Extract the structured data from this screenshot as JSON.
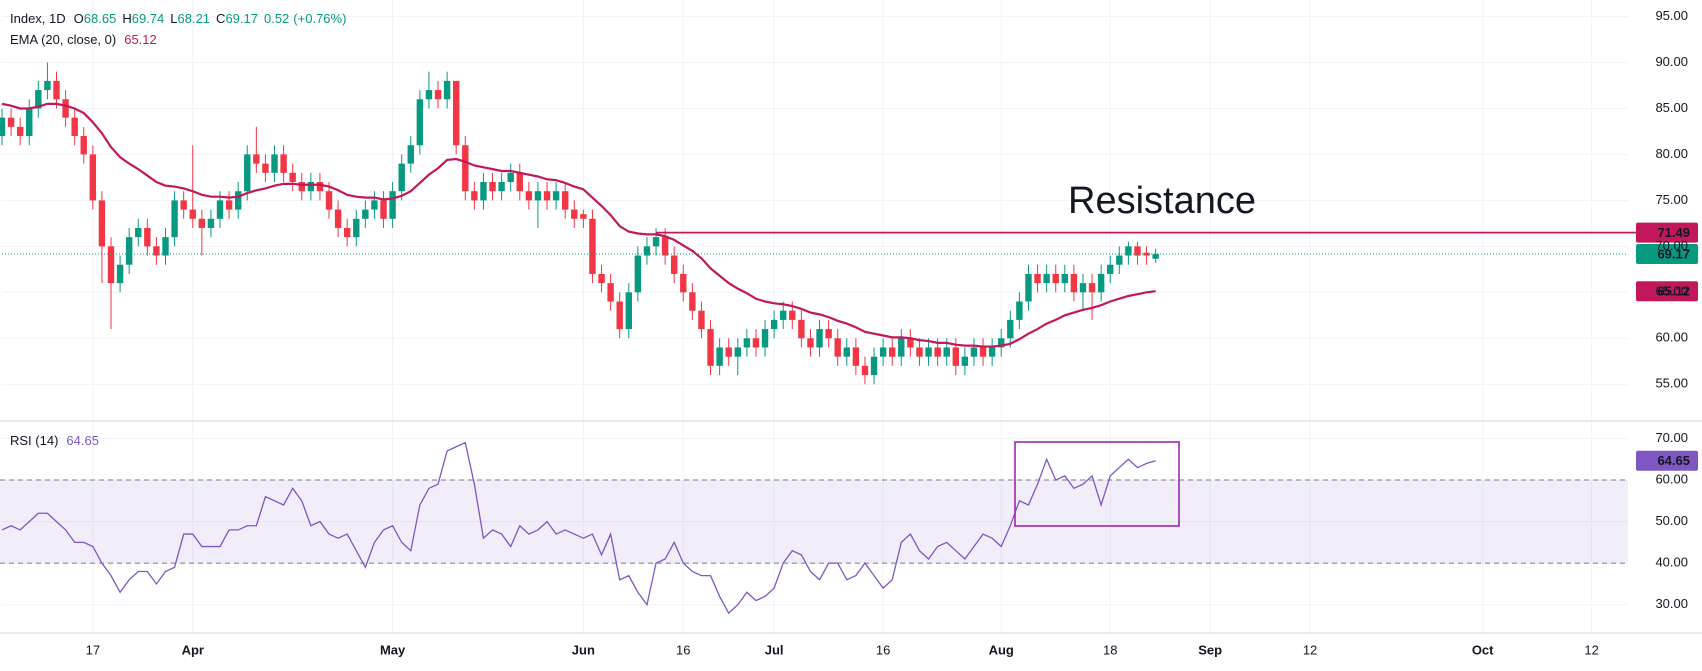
{
  "chart_data": {
    "type": "candlestick",
    "legend": {
      "symbol": "Index, 1D",
      "items": [
        {
          "label": "O",
          "value": 68.65
        },
        {
          "label": "H",
          "value": 69.74
        },
        {
          "label": "L",
          "value": 68.21
        },
        {
          "label": "C",
          "value": 69.17
        }
      ],
      "change": 0.52,
      "change_pct": "(+0.76%)"
    },
    "colors": {
      "up": "#089981",
      "down": "#f23645"
    },
    "candles": [
      [
        82,
        85,
        81,
        84
      ],
      [
        84,
        85,
        82,
        83
      ],
      [
        83,
        84,
        81,
        82
      ],
      [
        82,
        86,
        81,
        85
      ],
      [
        85,
        88,
        84,
        87
      ],
      [
        87,
        90,
        86,
        88
      ],
      [
        88,
        89,
        85,
        86
      ],
      [
        86,
        87,
        83,
        84
      ],
      [
        84,
        85,
        81,
        82
      ],
      [
        82,
        83,
        79,
        80
      ],
      [
        80,
        81,
        74,
        75
      ],
      [
        75,
        76,
        66,
        70
      ],
      [
        70,
        71,
        61,
        66
      ],
      [
        66,
        69,
        65,
        68
      ],
      [
        68,
        72,
        67,
        71
      ],
      [
        71,
        73,
        70,
        72
      ],
      [
        72,
        73,
        69,
        70
      ],
      [
        70,
        71,
        68,
        69
      ],
      [
        69,
        72,
        68,
        71
      ],
      [
        71,
        76,
        70,
        75
      ],
      [
        75,
        76,
        73,
        74
      ],
      [
        74,
        81,
        72,
        73
      ],
      [
        73,
        74,
        69,
        72
      ],
      [
        72,
        74,
        71,
        73
      ],
      [
        73,
        76,
        72,
        75
      ],
      [
        75,
        76,
        73,
        74
      ],
      [
        74,
        77,
        73,
        76
      ],
      [
        76,
        81,
        75,
        80
      ],
      [
        80,
        83,
        78,
        79
      ],
      [
        79,
        80,
        77,
        78
      ],
      [
        78,
        81,
        77,
        80
      ],
      [
        80,
        81,
        77,
        78
      ],
      [
        78,
        79,
        76,
        77
      ],
      [
        77,
        78,
        75,
        76
      ],
      [
        76,
        78,
        75,
        77
      ],
      [
        77,
        78,
        75,
        76
      ],
      [
        76,
        77,
        73,
        74
      ],
      [
        74,
        75,
        71,
        72
      ],
      [
        72,
        73,
        70,
        71
      ],
      [
        71,
        74,
        70,
        73
      ],
      [
        73,
        75,
        72,
        74
      ],
      [
        74,
        76,
        73,
        75
      ],
      [
        75,
        76,
        72,
        73
      ],
      [
        73,
        77,
        72,
        76
      ],
      [
        76,
        80,
        75,
        79
      ],
      [
        79,
        82,
        78,
        81
      ],
      [
        81,
        87,
        80,
        86
      ],
      [
        86,
        89,
        85,
        87
      ],
      [
        87,
        88,
        85,
        86
      ],
      [
        86,
        89,
        85,
        88
      ],
      [
        88,
        88,
        80,
        81
      ],
      [
        81,
        82,
        75,
        76
      ],
      [
        76,
        77,
        74,
        75
      ],
      [
        75,
        78,
        74,
        77
      ],
      [
        77,
        78,
        75,
        76
      ],
      [
        76,
        78,
        75,
        77
      ],
      [
        77,
        79,
        76,
        78
      ],
      [
        78,
        79,
        75,
        76
      ],
      [
        76,
        77,
        74,
        75
      ],
      [
        75,
        77,
        72,
        76
      ],
      [
        76,
        77,
        74,
        75
      ],
      [
        75,
        77,
        74,
        76
      ],
      [
        76,
        77,
        73,
        74
      ],
      [
        74,
        75,
        72,
        73
      ],
      [
        73.5,
        74,
        72,
        73
      ],
      [
        73,
        74,
        66,
        67
      ],
      [
        67,
        68,
        65,
        66
      ],
      [
        66,
        67,
        63,
        64
      ],
      [
        64,
        65,
        60,
        61
      ],
      [
        61,
        66,
        60,
        65
      ],
      [
        65,
        70,
        64,
        69
      ],
      [
        69,
        71,
        68,
        70
      ],
      [
        70,
        72,
        69,
        71
      ],
      [
        71,
        72,
        68,
        69
      ],
      [
        69,
        70,
        66,
        67
      ],
      [
        67,
        68,
        64,
        65
      ],
      [
        65,
        66,
        62,
        63
      ],
      [
        63,
        64,
        60,
        61
      ],
      [
        61,
        62,
        56,
        57
      ],
      [
        57,
        60,
        56,
        59
      ],
      [
        59,
        60,
        57,
        58
      ],
      [
        58,
        60,
        56,
        59
      ],
      [
        59,
        61,
        58,
        60
      ],
      [
        60,
        61,
        58,
        59
      ],
      [
        59,
        62,
        58,
        61
      ],
      [
        61,
        63,
        60,
        62
      ],
      [
        62,
        64,
        61,
        63
      ],
      [
        63,
        64,
        61,
        62
      ],
      [
        62,
        63,
        59,
        60
      ],
      [
        60,
        61,
        58,
        59
      ],
      [
        59,
        62,
        58,
        61
      ],
      [
        61,
        62,
        59,
        60
      ],
      [
        60,
        61,
        57,
        58
      ],
      [
        58,
        60,
        57,
        59
      ],
      [
        59,
        60,
        56,
        57
      ],
      [
        57,
        58,
        55,
        56
      ],
      [
        56,
        59,
        55,
        58
      ],
      [
        58,
        60,
        57,
        59
      ],
      [
        59,
        60,
        57,
        58
      ],
      [
        58,
        61,
        57,
        60
      ],
      [
        60,
        61,
        58,
        59
      ],
      [
        59,
        60,
        57,
        58
      ],
      [
        58,
        60,
        57,
        59
      ],
      [
        59,
        60,
        57,
        58
      ],
      [
        58,
        60,
        57,
        59
      ],
      [
        59,
        60,
        56,
        57
      ],
      [
        57,
        59,
        56,
        58
      ],
      [
        58,
        60,
        57,
        59
      ],
      [
        59,
        60,
        57,
        58
      ],
      [
        58,
        60,
        57,
        59
      ],
      [
        59,
        61,
        58,
        60
      ],
      [
        60,
        63,
        59,
        62
      ],
      [
        62,
        65,
        61,
        64
      ],
      [
        64,
        68,
        63,
        67
      ],
      [
        67,
        68,
        65,
        66
      ],
      [
        66,
        68,
        65,
        67
      ],
      [
        67,
        68,
        65,
        66
      ],
      [
        66,
        68,
        65,
        67
      ],
      [
        67,
        68,
        64,
        65
      ],
      [
        65,
        67,
        63,
        66
      ],
      [
        66,
        67,
        62,
        65
      ],
      [
        65,
        68,
        64,
        67
      ],
      [
        67,
        69,
        66,
        68
      ],
      [
        68,
        70,
        67,
        69
      ],
      [
        69,
        70.5,
        68,
        70
      ],
      [
        70,
        70.5,
        68,
        69
      ],
      [
        69.3,
        70,
        68,
        69
      ],
      [
        68.65,
        69.74,
        68.21,
        69.17
      ]
    ],
    "ema": {
      "name": "EMA (20, close, 0)",
      "last": 65.12,
      "color": "#c2185b",
      "values": [
        85.5,
        85.3,
        85,
        85,
        85.2,
        85.5,
        85.5,
        85.3,
        85,
        84.5,
        83.5,
        82.3,
        80.8,
        79.7,
        79,
        78.4,
        77.7,
        77,
        76.6,
        76.5,
        76.3,
        76,
        75.6,
        75.4,
        75.4,
        75.3,
        75.4,
        75.8,
        76.1,
        76.3,
        76.6,
        76.8,
        76.8,
        76.7,
        76.7,
        76.7,
        76.5,
        76.1,
        75.6,
        75.4,
        75.3,
        75.3,
        75.1,
        75.2,
        75.5,
        76,
        76.9,
        77.8,
        78.5,
        79.4,
        79.5,
        79.2,
        78.8,
        78.6,
        78.4,
        78.2,
        78.2,
        78,
        77.8,
        77.6,
        77.3,
        77.2,
        76.9,
        76.5,
        76.2,
        75.3,
        74.4,
        73.4,
        72.2,
        71.6,
        71.4,
        71.3,
        71.3,
        71.1,
        70.7,
        70.1,
        69.5,
        68.7,
        67.6,
        66.8,
        66,
        65.4,
        64.9,
        64.3,
        64,
        63.8,
        63.7,
        63.5,
        63.2,
        62.8,
        62.6,
        62.3,
        61.9,
        61.6,
        61.2,
        60.7,
        60.5,
        60.3,
        60.1,
        60.1,
        60,
        59.8,
        59.7,
        59.5,
        59.5,
        59.3,
        59.2,
        59.2,
        59.1,
        59.1,
        59.2,
        59.4,
        59.9,
        60.5,
        61,
        61.6,
        62,
        62.5,
        62.8,
        63.1,
        63.3,
        63.6,
        64,
        64.3,
        64.6,
        64.8,
        65,
        65.12
      ]
    },
    "last_price": 69.17,
    "resistance": {
      "label": "Resistance",
      "value": 71.49,
      "start": 72,
      "color": "#c2185b",
      "label_color": "#2962ff"
    },
    "ylim": [
      51,
      96.8
    ],
    "yticks": [
      {
        "value": 55,
        "label": "55.00"
      },
      {
        "value": 60,
        "label": "60.00"
      },
      {
        "value": 65,
        "label": "65.00"
      },
      {
        "value": 70,
        "label": "70.00"
      },
      {
        "value": 75,
        "label": "75.00"
      },
      {
        "value": 80,
        "label": "80.00"
      },
      {
        "value": 85,
        "label": "85.00"
      },
      {
        "value": 90,
        "label": "90.00"
      },
      {
        "value": 95,
        "label": "95.00"
      }
    ],
    "xlim": [
      0,
      179
    ],
    "xticks": [
      {
        "value": 10,
        "label": "17"
      },
      {
        "value": 21,
        "label": "Apr"
      },
      {
        "value": 43,
        "label": "May"
      },
      {
        "value": 64,
        "label": "Jun"
      },
      {
        "value": 75,
        "label": "16"
      },
      {
        "value": 85,
        "label": "Jul"
      },
      {
        "value": 97,
        "label": "16"
      },
      {
        "value": 110,
        "label": "Aug"
      },
      {
        "value": 122,
        "label": "18"
      },
      {
        "value": 133,
        "label": "Sep"
      },
      {
        "value": 144,
        "label": "12"
      },
      {
        "value": 163,
        "label": "Oct"
      },
      {
        "value": 175,
        "label": "12"
      }
    ],
    "grid": true,
    "rsi": {
      "name": "RSI (14)",
      "last": 64.65,
      "color": "#7e57c2",
      "ylim": [
        23.2,
        74.2
      ],
      "band": [
        40,
        60
      ],
      "yticks": [
        {
          "value": 30,
          "label": "30.00"
        },
        {
          "value": 40,
          "label": "40.00"
        },
        {
          "value": 50,
          "label": "50.00"
        },
        {
          "value": 60,
          "label": "60.00"
        },
        {
          "value": 70,
          "label": "70.00"
        }
      ],
      "values": [
        48,
        49,
        48,
        50,
        52,
        52,
        50,
        48,
        45,
        45,
        44,
        40,
        37,
        33,
        36,
        38,
        38,
        35,
        38,
        39,
        47,
        47,
        44,
        44,
        44,
        48,
        48,
        49,
        49,
        56,
        55,
        54,
        58,
        55,
        49,
        50,
        47,
        46,
        47,
        43,
        39,
        45,
        48,
        49,
        45,
        43,
        54,
        58,
        59,
        67,
        68,
        69,
        59,
        46,
        48,
        47,
        44,
        49,
        47,
        48,
        50,
        47,
        48,
        47,
        46,
        47,
        42,
        47,
        36,
        37,
        33,
        30,
        40,
        41,
        45,
        40,
        38,
        37,
        37,
        32,
        28,
        30,
        33,
        31,
        32,
        34,
        40,
        43,
        42,
        38,
        36,
        40,
        40,
        36,
        37,
        40,
        37,
        34,
        36,
        45,
        47,
        43,
        41,
        44,
        45,
        43,
        41,
        44,
        47,
        46,
        44,
        49,
        55,
        54,
        59,
        65,
        60,
        61,
        58,
        59,
        61,
        54,
        61,
        63,
        65,
        63,
        64,
        64.65
      ]
    }
  }
}
